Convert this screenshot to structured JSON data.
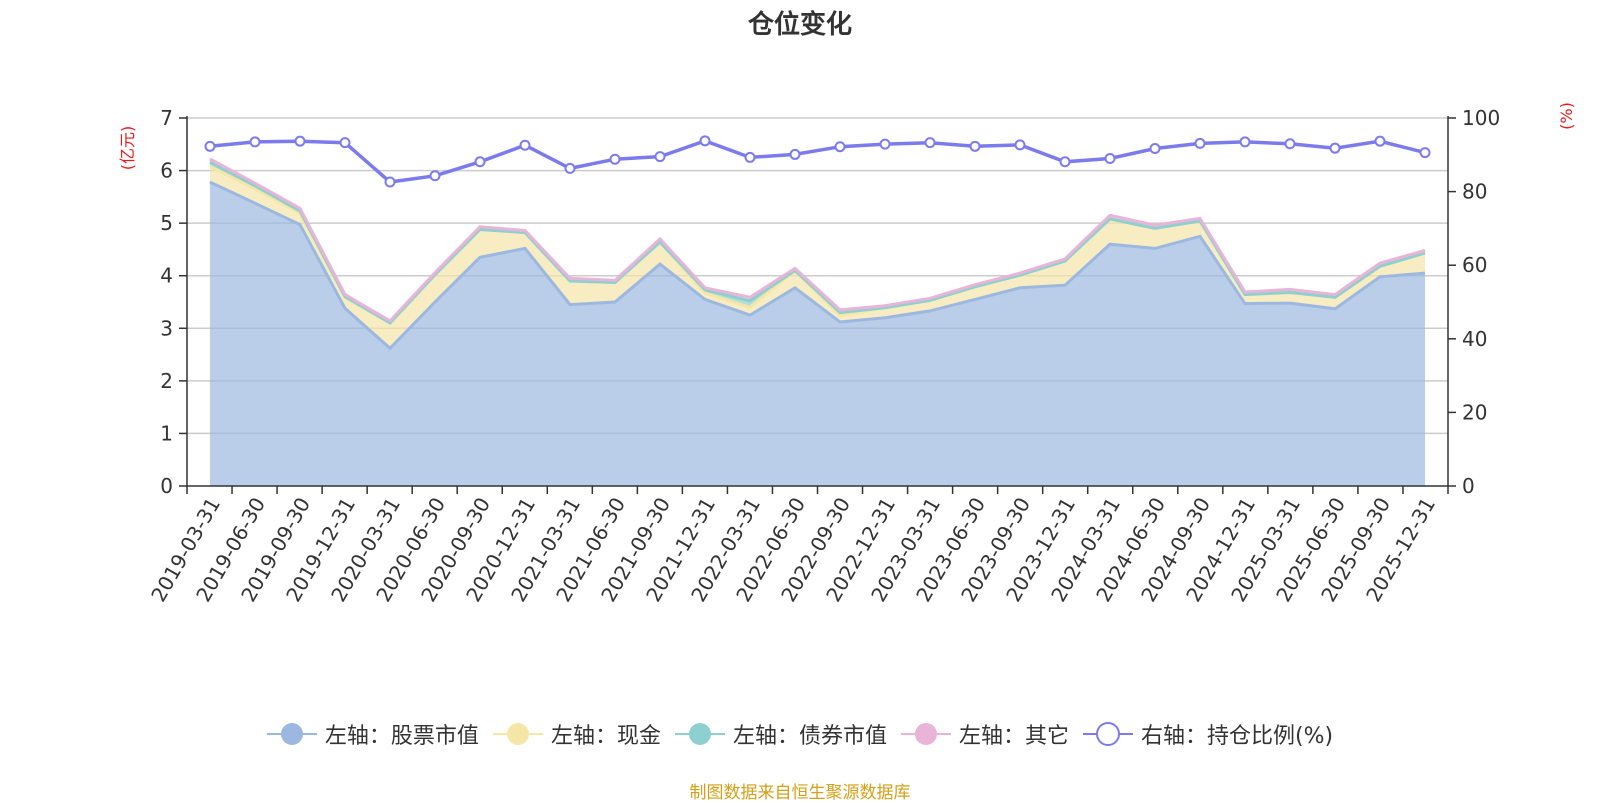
{
  "title": "仓位变化",
  "source_note": "制图数据来自恒生聚源数据库",
  "colors": {
    "stock": "#9db8e0",
    "cash": "#f5e6a8",
    "bond": "#8ed0cf",
    "other": "#e8b4d8",
    "ratio": "#7b7bee",
    "grid": "#cccccc",
    "unit": "#e41a1c",
    "source": "#d4a017"
  },
  "chart_data": {
    "type": "area",
    "title": "仓位变化",
    "left_unit": "(亿元)",
    "right_unit": "(%)",
    "ylim_left": [
      0,
      7
    ],
    "yticks_left": [
      0,
      1,
      2,
      3,
      4,
      5,
      6,
      7
    ],
    "ylim_right": [
      0,
      100
    ],
    "yticks_right": [
      0,
      20,
      40,
      60,
      80,
      100
    ],
    "grid": true,
    "legend_position": "bottom",
    "categories": [
      "2019-03-31",
      "2019-06-30",
      "2019-09-30",
      "2019-12-31",
      "2020-03-31",
      "2020-06-30",
      "2020-09-30",
      "2020-12-31",
      "2021-03-31",
      "2021-06-30",
      "2021-09-30",
      "2021-12-31",
      "2022-03-31",
      "2022-06-30",
      "2022-09-30",
      "2022-12-31",
      "2023-03-31",
      "2023-06-30",
      "2023-09-30",
      "2023-12-31",
      "2024-03-31",
      "2024-06-30",
      "2024-09-30",
      "2024-12-31",
      "2025-03-31",
      "2025-06-30",
      "2025-09-30",
      "2025-12-31"
    ],
    "series": [
      {
        "name": "左轴：股票市值",
        "axis": "left",
        "stack": true,
        "values": [
          5.78,
          5.38,
          4.97,
          3.38,
          2.62,
          3.5,
          4.35,
          4.52,
          3.45,
          3.5,
          4.22,
          3.55,
          3.25,
          3.77,
          3.12,
          3.2,
          3.33,
          3.55,
          3.77,
          3.82,
          4.6,
          4.52,
          4.75,
          3.47,
          3.48,
          3.37,
          3.98,
          4.05
        ]
      },
      {
        "name": "左轴：现金",
        "axis": "left",
        "stack": true,
        "values": [
          0.3,
          0.27,
          0.22,
          0.2,
          0.48,
          0.52,
          0.53,
          0.3,
          0.45,
          0.37,
          0.42,
          0.12,
          0.15,
          0.33,
          0.12,
          0.19,
          0.2,
          0.24,
          0.24,
          0.46,
          0.48,
          0.38,
          0.29,
          0.17,
          0.2,
          0.22,
          0.2,
          0.38
        ]
      },
      {
        "name": "左轴：债券市值",
        "axis": "left",
        "stack": true,
        "values": [
          0.08,
          0.06,
          0.04,
          0.02,
          0.0,
          0.0,
          0.0,
          0.0,
          0.0,
          0.0,
          0.0,
          0.06,
          0.12,
          0.0,
          0.06,
          0.0,
          0.0,
          0.0,
          0.0,
          0.0,
          0.0,
          0.0,
          0.0,
          0.0,
          0.0,
          0.0,
          0.0,
          0.0
        ]
      },
      {
        "name": "左轴：其它",
        "axis": "left",
        "stack": true,
        "values": [
          0.06,
          0.05,
          0.05,
          0.04,
          0.04,
          0.04,
          0.05,
          0.04,
          0.05,
          0.04,
          0.06,
          0.04,
          0.07,
          0.04,
          0.05,
          0.04,
          0.04,
          0.04,
          0.04,
          0.04,
          0.07,
          0.06,
          0.05,
          0.05,
          0.06,
          0.05,
          0.06,
          0.05
        ]
      },
      {
        "name": "右轴：持仓比例(%)",
        "axis": "right",
        "type": "line",
        "values": [
          92.3,
          93.5,
          93.7,
          93.3,
          82.6,
          84.3,
          88.1,
          92.6,
          86.3,
          88.8,
          89.5,
          93.8,
          89.3,
          90.1,
          92.2,
          92.9,
          93.3,
          92.3,
          92.7,
          88.1,
          89.0,
          91.7,
          93.1,
          93.5,
          93.0,
          91.8,
          93.7,
          90.6
        ]
      }
    ]
  },
  "legend": [
    {
      "label": "左轴：股票市值",
      "icon": "filled-circle-icon",
      "color": "#9db8e0"
    },
    {
      "label": "左轴：现金",
      "icon": "filled-circle-icon",
      "color": "#f5e6a8"
    },
    {
      "label": "左轴：债券市值",
      "icon": "filled-circle-icon",
      "color": "#8ed0cf"
    },
    {
      "label": "左轴：其它",
      "icon": "filled-circle-icon",
      "color": "#e8b4d8"
    },
    {
      "label": "右轴：持仓比例(%)",
      "icon": "hollow-circle-icon",
      "color": "#7b7bee"
    }
  ]
}
